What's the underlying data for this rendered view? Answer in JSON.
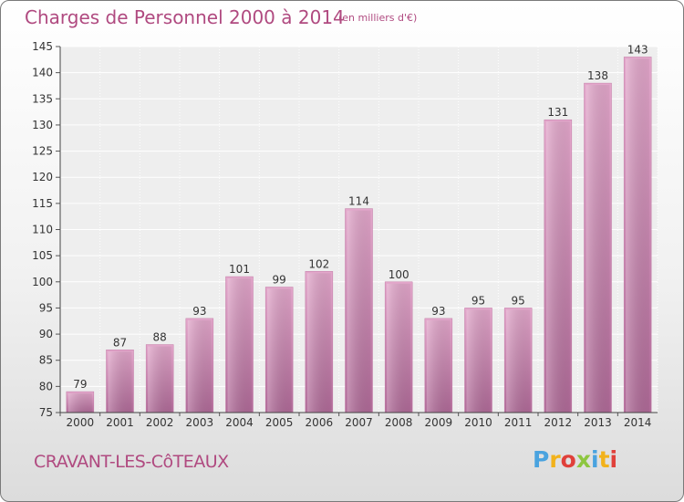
{
  "header": {
    "title": "Charges de Personnel 2000 à 2014",
    "unit": "(en milliers d'€)"
  },
  "footer": {
    "commune": "CRAVANT-LES-CôTEAUX",
    "logo": {
      "text": "Proxiti",
      "letters": [
        {
          "char": "P",
          "color": "#4aa3df"
        },
        {
          "char": "r",
          "color": "#f2b21b"
        },
        {
          "char": "o",
          "color": "#e0403a"
        },
        {
          "char": "x",
          "color": "#8dc63f"
        },
        {
          "char": "i",
          "color": "#4aa3df"
        },
        {
          "char": "t",
          "color": "#f2b21b"
        },
        {
          "char": "i",
          "color": "#e0403a"
        }
      ]
    }
  },
  "chart_data": {
    "type": "bar",
    "title": "Charges de Personnel 2000 à 2014",
    "xlabel": "",
    "ylabel": "",
    "categories": [
      "2000",
      "2001",
      "2002",
      "2003",
      "2004",
      "2005",
      "2006",
      "2007",
      "2008",
      "2009",
      "2010",
      "2011",
      "2012",
      "2013",
      "2014"
    ],
    "values": [
      79,
      87,
      88,
      93,
      101,
      99,
      102,
      114,
      100,
      93,
      95,
      95,
      131,
      138,
      143
    ],
    "ylim": [
      75,
      145
    ],
    "yticks": [
      75,
      80,
      85,
      90,
      95,
      100,
      105,
      110,
      115,
      120,
      125,
      130,
      135,
      140,
      145
    ],
    "grid": true,
    "bar_color": "#d98fba",
    "bar_color_dark": "#b35f8f",
    "data_labels": true
  }
}
